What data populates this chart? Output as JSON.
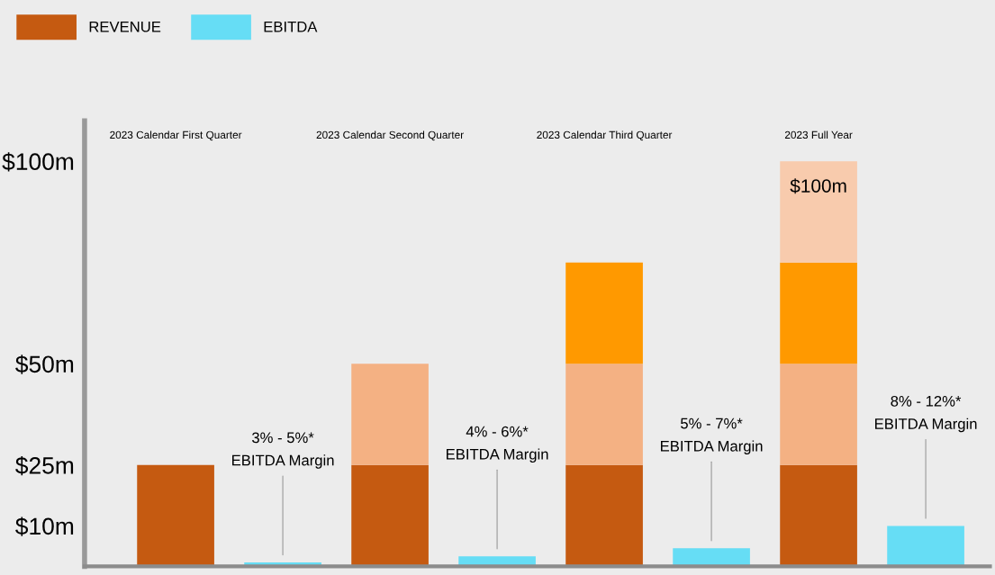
{
  "chart_data": {
    "type": "bar",
    "categories": [
      "2023 Calendar First Quarter",
      null,
      "2023 Calendar Second Quarter",
      null,
      "2023 Calendar Third Quarter",
      null,
      "2023 Full Year",
      null
    ],
    "stacked": true,
    "ylim": [
      0,
      110
    ],
    "yticks": [
      {
        "value": 10,
        "label": "$10m"
      },
      {
        "value": 25,
        "label": "$25m"
      },
      {
        "value": 50,
        "label": "$50m"
      },
      {
        "value": 100,
        "label": "$100m"
      }
    ],
    "legend": "top left",
    "grid": false,
    "series": [
      {
        "name": "REVENUE",
        "color": "#c55a11",
        "values": [
          25,
          null,
          25,
          null,
          25,
          null,
          25,
          null
        ]
      },
      {
        "color": "#f4b183",
        "values": [
          null,
          null,
          25,
          null,
          25,
          null,
          25,
          null
        ]
      },
      {
        "color": "#ff9900",
        "values": [
          null,
          null,
          null,
          null,
          25,
          null,
          25,
          null
        ]
      },
      {
        "color": "#f8cbad",
        "values": [
          null,
          null,
          null,
          null,
          null,
          null,
          25,
          null
        ]
      },
      {
        "name": "EBITDA",
        "color": "#66ddf5",
        "values": [
          null,
          1,
          null,
          2.5,
          null,
          4.5,
          null,
          10
        ]
      }
    ],
    "totals": [
      null,
      null,
      null,
      null,
      null,
      null,
      "$100m",
      null
    ],
    "annotations": [
      {
        "text": "3% - 5%*\nEBITDA Margin",
        "y": 1
      },
      {
        "text": "4% - 6%*\nEBITDA Margin",
        "y": 2.5
      },
      {
        "text": "5% - 7%*\nEBITDA Margin",
        "y": 4.5
      },
      {
        "text": "8% - 12%*\nEBITDA Margin",
        "y": 10
      }
    ]
  }
}
